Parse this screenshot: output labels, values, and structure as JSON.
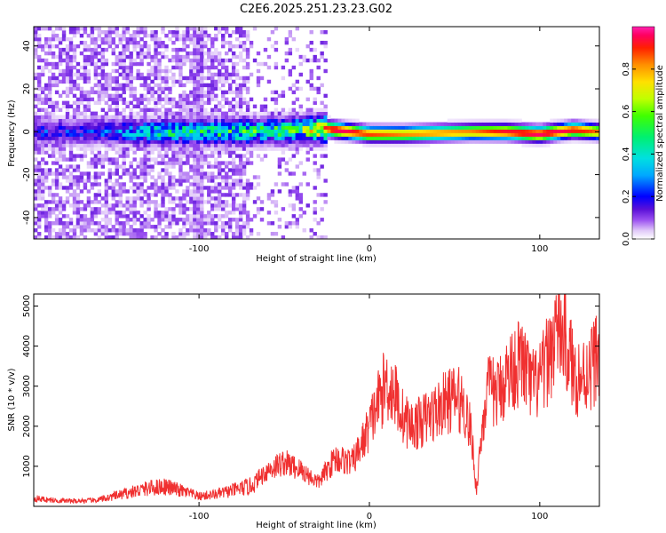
{
  "figure": {
    "title": "C2E6.2025.251.23.23.G02"
  },
  "chart_data": [
    {
      "type": "heatmap",
      "title": "C2E6.2025.251.23.23.G02",
      "xlabel": "Height of straight line (km)",
      "ylabel": "Frequency (Hz)",
      "xlim": [
        -197,
        135
      ],
      "ylim": [
        -50,
        49
      ],
      "x_ticks": [
        -100,
        0,
        100
      ],
      "y_ticks": [
        -40,
        -20,
        0,
        20,
        40
      ],
      "colorbar": {
        "label": "Normalized spectral amplitude",
        "range": [
          0,
          1
        ],
        "ticks": [
          0.0,
          0.2,
          0.4,
          0.6,
          0.8
        ],
        "colors": [
          "#ffffff",
          "#e0c8f8",
          "#9a50f0",
          "#5a10d8",
          "#0000ff",
          "#00a8ff",
          "#00e0e0",
          "#00f070",
          "#40ff00",
          "#c0ff00",
          "#ffe000",
          "#ff9000",
          "#ff2000",
          "#ff0060",
          "#ff20b0"
        ]
      },
      "description": "Spectral amplitude vs height: broad noisy energy for heights below about -25 km, a narrow band centred near 0 Hz for heights above about -20 km",
      "band": {
        "x": [
          -197,
          -160,
          -140,
          -120,
          -100,
          -80,
          -60,
          -40,
          -25,
          -20,
          0,
          20,
          40,
          60,
          80,
          100,
          120,
          135
        ],
        "center_hz": [
          0,
          0,
          0,
          0,
          0,
          0,
          0.5,
          1,
          1.5,
          1,
          -1,
          -1,
          -0.5,
          0,
          0,
          -1,
          1,
          0
        ],
        "amplitude": [
          0.3,
          0.3,
          0.4,
          0.5,
          0.5,
          0.55,
          0.55,
          0.6,
          0.85,
          0.95,
          0.85,
          0.8,
          0.8,
          0.8,
          0.9,
          0.95,
          0.9,
          0.8
        ]
      }
    },
    {
      "type": "line",
      "xlabel": "Height of straight line (km)",
      "ylabel": "SNR (10 * v/v)",
      "xlim": [
        -197,
        135
      ],
      "ylim": [
        0,
        5300
      ],
      "x_ticks": [
        -100,
        0,
        100
      ],
      "y_ticks": [
        1000,
        2000,
        3000,
        4000,
        5000
      ],
      "color": "#f03030",
      "series": [
        {
          "name": "SNR",
          "x": [
            -197,
            -185,
            -175,
            -160,
            -150,
            -140,
            -130,
            -120,
            -110,
            -100,
            -90,
            -80,
            -70,
            -60,
            -50,
            -40,
            -30,
            -20,
            -10,
            -5,
            0,
            5,
            10,
            15,
            20,
            25,
            30,
            40,
            45,
            50,
            55,
            60,
            62,
            63,
            65,
            68,
            70,
            75,
            80,
            85,
            90,
            95,
            100,
            105,
            108,
            110,
            115,
            120,
            125,
            130,
            135
          ],
          "y": [
            200,
            150,
            130,
            150,
            250,
            350,
            450,
            500,
            380,
            250,
            300,
            400,
            500,
            900,
            1100,
            900,
            600,
            1200,
            1100,
            1500,
            2000,
            2600,
            3100,
            2800,
            2200,
            2000,
            2100,
            2400,
            2600,
            2700,
            2600,
            1800,
            700,
            400,
            1500,
            2600,
            2900,
            2800,
            3200,
            3500,
            3600,
            3000,
            3100,
            3700,
            4100,
            4500,
            4200,
            3300,
            3200,
            3500,
            3900
          ]
        }
      ]
    }
  ]
}
